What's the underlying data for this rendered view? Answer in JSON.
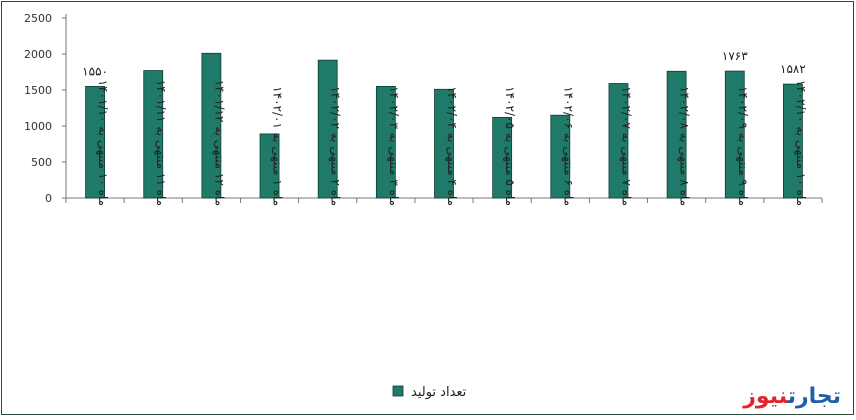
{
  "chart_data": {
    "type": "bar",
    "categories": [
      "ماه ۱۰ منتهی به ۱۴۰۱/۱۰",
      "ماه ۱۱ منتهی به ۱۴۰۱/۱۱",
      "ماه ۱۲ منتهی به ۱۴۰۱/۱۲",
      "ماه ۱ منتهی به ۱۴۰۲/۰۱",
      "ماه ۲ منتهی به ۱۴۰۲/۰۲",
      "ماه ۳ منتهی به ۱۴۰۲/۰۳",
      "ماه ۴ منتهی به ۱۴۰۲/۰۴",
      "ماه ۵ منتهی به ۱۴۰۲/۰۵",
      "ماه ۶ منتهی به ۱۴۰۲/۰۶",
      "ماه ۷ منتهی به ۱۴۰۲/۰۷",
      "ماه ۸ منتهی به ۱۴۰۲/۰۸",
      "ماه ۹ منتهی به ۱۴۰۲/۰۹",
      "ماه ۱۰ منتهی به ۱۴۰۲/۱۰"
    ],
    "series": [
      {
        "name": "تعداد تولید",
        "color": "#1f7a6a",
        "values": [
          1550,
          1770,
          2010,
          890,
          1915,
          1550,
          1510,
          1120,
          1150,
          1590,
          1760,
          1763,
          1582
        ]
      }
    ],
    "data_labels": [
      "۱۵۵۰",
      "",
      "",
      "",
      "",
      "",
      "",
      "",
      "",
      "",
      "",
      "۱۷۶۳",
      "۱۵۸۲"
    ],
    "y_ticks": [
      0,
      500,
      1000,
      1500,
      2000,
      2500
    ],
    "y_tick_labels": [
      "0",
      "500",
      "1000",
      "1500",
      "2000",
      "2500"
    ],
    "ylim": [
      0,
      2500
    ],
    "grid": false,
    "legend": {
      "position": "bottom",
      "label": "تعداد تولید"
    },
    "title": "",
    "xlabel": "",
    "ylabel": ""
  },
  "brand": {
    "part1": "تجارت",
    "part2": "نیوز"
  }
}
